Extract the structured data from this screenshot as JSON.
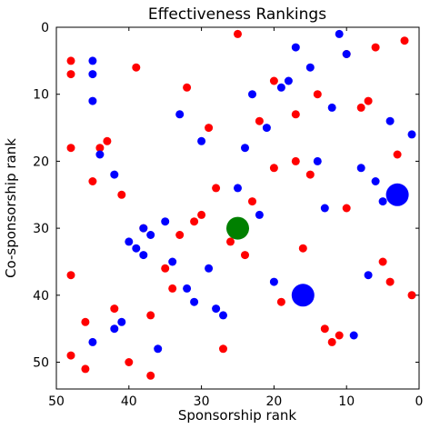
{
  "chart_data": {
    "type": "scatter",
    "title": "Effectiveness Rankings",
    "xlabel": "Sponsorship rank",
    "ylabel": "Co-sponsorship rank",
    "xlim": [
      50,
      0
    ],
    "ylim": [
      54,
      0
    ],
    "x_ticks": [
      50,
      40,
      30,
      20,
      10,
      0
    ],
    "y_ticks": [
      0,
      10,
      20,
      30,
      40,
      50
    ],
    "grid": false,
    "colors": {
      "red": "#ff0000",
      "blue": "#0000ff",
      "green": "#008000"
    },
    "series": [
      {
        "color": "#ff0000",
        "size": "small",
        "points": [
          [
            25,
            1
          ],
          [
            48,
            5
          ],
          [
            48,
            7
          ],
          [
            39,
            6
          ],
          [
            6,
            3
          ],
          [
            2,
            2
          ],
          [
            10,
            4
          ],
          [
            32,
            9
          ],
          [
            20,
            8
          ],
          [
            14,
            10
          ],
          [
            7,
            11
          ],
          [
            8,
            12
          ],
          [
            17,
            13
          ],
          [
            22,
            14
          ],
          [
            29,
            15
          ],
          [
            48,
            18
          ],
          [
            44,
            18
          ],
          [
            43,
            17
          ],
          [
            3,
            19
          ],
          [
            17,
            20
          ],
          [
            20,
            21
          ],
          [
            15,
            22
          ],
          [
            45,
            23
          ],
          [
            41,
            25
          ],
          [
            28,
            24
          ],
          [
            23,
            26
          ],
          [
            10,
            27
          ],
          [
            31,
            29
          ],
          [
            30,
            28
          ],
          [
            38,
            30
          ],
          [
            33,
            31
          ],
          [
            26,
            32
          ],
          [
            24,
            34
          ],
          [
            16,
            33
          ],
          [
            35,
            36
          ],
          [
            34,
            39
          ],
          [
            48,
            37
          ],
          [
            5,
            35
          ],
          [
            4,
            38
          ],
          [
            19,
            41
          ],
          [
            1,
            40
          ],
          [
            42,
            42
          ],
          [
            37,
            43
          ],
          [
            46,
            44
          ],
          [
            13,
            45
          ],
          [
            11,
            46
          ],
          [
            12,
            47
          ],
          [
            27,
            48
          ],
          [
            48,
            49
          ],
          [
            40,
            50
          ],
          [
            46,
            51
          ],
          [
            37,
            52
          ]
        ]
      },
      {
        "color": "#0000ff",
        "size": "small",
        "points": [
          [
            11,
            1
          ],
          [
            17,
            3
          ],
          [
            45,
            5
          ],
          [
            45,
            7
          ],
          [
            15,
            6
          ],
          [
            10,
            4
          ],
          [
            18,
            8
          ],
          [
            19,
            9
          ],
          [
            23,
            10
          ],
          [
            45,
            11
          ],
          [
            12,
            12
          ],
          [
            33,
            13
          ],
          [
            21,
            15
          ],
          [
            4,
            14
          ],
          [
            1,
            16
          ],
          [
            30,
            17
          ],
          [
            24,
            18
          ],
          [
            44,
            19
          ],
          [
            14,
            20
          ],
          [
            8,
            21
          ],
          [
            42,
            22
          ],
          [
            6,
            23
          ],
          [
            25,
            24
          ],
          [
            5,
            26
          ],
          [
            13,
            27
          ],
          [
            22,
            28
          ],
          [
            35,
            29
          ],
          [
            38,
            30
          ],
          [
            37,
            31
          ],
          [
            40,
            32
          ],
          [
            39,
            33
          ],
          [
            38,
            34
          ],
          [
            34,
            35
          ],
          [
            29,
            36
          ],
          [
            7,
            37
          ],
          [
            20,
            38
          ],
          [
            32,
            39
          ],
          [
            31,
            41
          ],
          [
            28,
            42
          ],
          [
            27,
            43
          ],
          [
            41,
            44
          ],
          [
            42,
            45
          ],
          [
            9,
            46
          ],
          [
            45,
            47
          ],
          [
            36,
            48
          ]
        ]
      },
      {
        "color": "#0000ff",
        "size": "large",
        "points": [
          [
            3,
            25
          ],
          [
            16,
            40
          ]
        ]
      },
      {
        "color": "#008000",
        "size": "large",
        "points": [
          [
            25,
            30
          ]
        ]
      }
    ]
  }
}
